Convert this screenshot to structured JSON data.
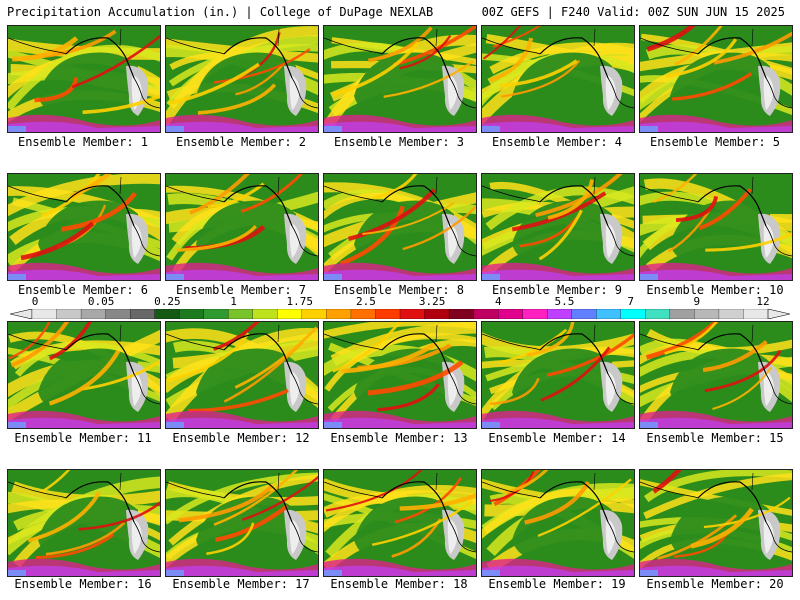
{
  "header": {
    "left": "Precipitation Accumulation (in.) | College of DuPage NEXLAB",
    "right": "00Z GEFS | F240 Valid: 00Z SUN JUN 15 2025"
  },
  "legend": {
    "ticks": [
      "0",
      "0.05",
      "0.25",
      "1",
      "1.75",
      "2.5",
      "3.25",
      "4",
      "5.5",
      "7",
      "9",
      "12"
    ],
    "colors": [
      "#e8e8e8",
      "#c8c8c8",
      "#a8a8a8",
      "#888888",
      "#686868",
      "#145a14",
      "#1e7a1e",
      "#2f9a2f",
      "#78c22a",
      "#bfe21e",
      "#ffff00",
      "#ffd000",
      "#ffa000",
      "#ff7000",
      "#ff3c00",
      "#e01010",
      "#b00010",
      "#800020",
      "#c00060",
      "#e0008c",
      "#ff20c0",
      "#c040ff",
      "#6080ff",
      "#40c0ff",
      "#00ffff",
      "#40e0c0",
      "#a0a0a0",
      "#b8b8b8",
      "#d0d0d0",
      "#e8e8e8"
    ]
  },
  "members": [
    "Ensemble Member: 1",
    "Ensemble Member: 2",
    "Ensemble Member: 3",
    "Ensemble Member: 4",
    "Ensemble Member: 5",
    "Ensemble Member: 6",
    "Ensemble Member: 7",
    "Ensemble Member: 8",
    "Ensemble Member: 9",
    "Ensemble Member: 10",
    "Ensemble Member: 11",
    "Ensemble Member: 12",
    "Ensemble Member: 13",
    "Ensemble Member: 14",
    "Ensemble Member: 15",
    "Ensemble Member: 16",
    "Ensemble Member: 17",
    "Ensemble Member: 18",
    "Ensemble Member: 19",
    "Ensemble Member: 20"
  ]
}
